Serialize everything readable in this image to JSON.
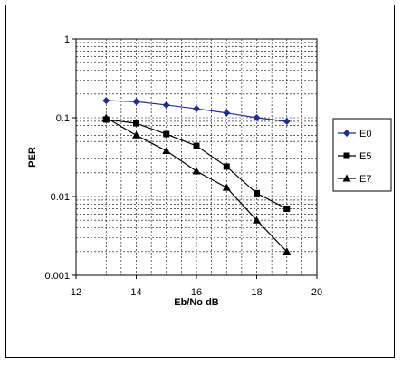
{
  "chart_data": {
    "type": "line",
    "title": "",
    "xlabel": "Eb/No dB",
    "ylabel": "PER",
    "xlim": [
      12,
      20
    ],
    "ylim": [
      0.001,
      1
    ],
    "y_scale": "log",
    "x_ticks": [
      "12",
      "14",
      "16",
      "18",
      "20"
    ],
    "y_ticks": [
      "0.001",
      "0.01",
      "0.1",
      "1"
    ],
    "grid": true,
    "legend_position": "right",
    "x": [
      13,
      14,
      15,
      16,
      17,
      18,
      19
    ],
    "series": [
      {
        "name": "E0",
        "marker": "diamond",
        "color": "#1f2f8f",
        "values": [
          0.165,
          0.16,
          0.145,
          0.13,
          0.115,
          0.1,
          0.09
        ]
      },
      {
        "name": "E5",
        "marker": "square",
        "color": "#000000",
        "values": [
          0.095,
          0.085,
          0.062,
          0.044,
          0.024,
          0.011,
          0.007
        ]
      },
      {
        "name": "E7",
        "marker": "triangle",
        "color": "#000000",
        "values": [
          0.1,
          0.06,
          0.038,
          0.021,
          0.013,
          0.005,
          0.002
        ]
      }
    ]
  }
}
